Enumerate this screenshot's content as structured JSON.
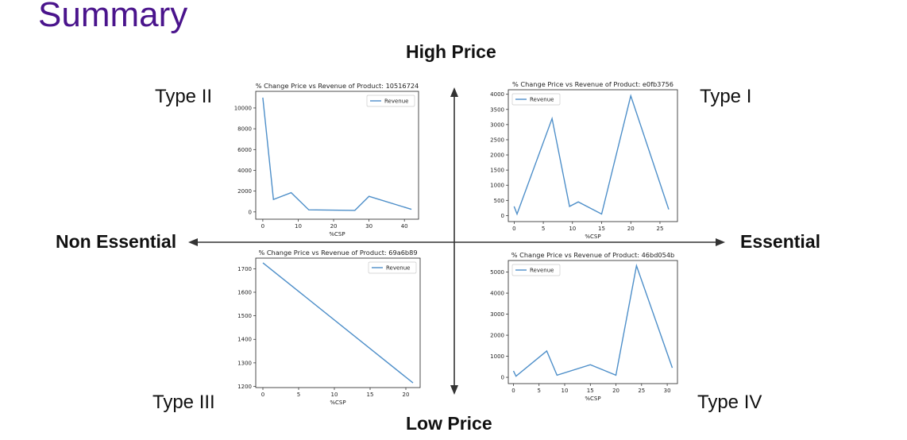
{
  "slide": {
    "title": "Summary",
    "axes": {
      "top": "High Price",
      "bottom": "Low Price",
      "left": "Non Essential",
      "right": "Essential"
    },
    "types": {
      "top_left": "Type II",
      "top_right": "Type I",
      "bottom_left": "Type III",
      "bottom_right": "Type IV"
    }
  },
  "chart_data": [
    {
      "id": "c-topleft",
      "type": "line",
      "title": "% Change Price vs Revenue of Product: 10516724",
      "xlabel": "%CSP",
      "ylabel": "",
      "x": [
        0,
        3,
        8,
        13,
        26,
        30,
        42
      ],
      "series": [
        {
          "name": "Revenue",
          "values": [
            11000,
            1200,
            1850,
            200,
            150,
            1500,
            250
          ]
        }
      ],
      "xlim": [
        -2,
        44
      ],
      "ylim": [
        -700,
        11600
      ],
      "xticks": [
        0,
        10,
        20,
        30,
        40
      ],
      "yticks": [
        0,
        2000,
        4000,
        6000,
        8000,
        10000
      ],
      "legend": "top-right",
      "color": "#4e8fc9"
    },
    {
      "id": "c-topright",
      "type": "line",
      "title": "% Change Price vs Revenue of Product: e0fb3756",
      "xlabel": "%CSP",
      "ylabel": "",
      "x": [
        0,
        0.5,
        6.5,
        9.5,
        11,
        15,
        20,
        26.5
      ],
      "series": [
        {
          "name": "Revenue",
          "values": [
            300,
            50,
            3200,
            300,
            450,
            50,
            3950,
            200
          ]
        }
      ],
      "xlim": [
        -1,
        28
      ],
      "ylim": [
        -200,
        4150
      ],
      "xticks": [
        0,
        5,
        10,
        15,
        20,
        25
      ],
      "yticks": [
        0,
        500,
        1000,
        1500,
        2000,
        2500,
        3000,
        3500,
        4000
      ],
      "legend": "top-left",
      "color": "#4e8fc9"
    },
    {
      "id": "c-bottomleft",
      "type": "line",
      "title": "% Change Price vs Revenue of Product: 69a6b89",
      "xlabel": "%CSP",
      "ylabel": "",
      "x": [
        0,
        21
      ],
      "series": [
        {
          "name": "Revenue",
          "values": [
            1725,
            1215
          ]
        }
      ],
      "xlim": [
        -1,
        22
      ],
      "ylim": [
        1195,
        1745
      ],
      "xticks": [
        0,
        5,
        10,
        15,
        20
      ],
      "yticks": [
        1200,
        1300,
        1400,
        1500,
        1600,
        1700
      ],
      "legend": "top-right",
      "color": "#4e8fc9"
    },
    {
      "id": "c-bottomright",
      "type": "line",
      "title": "% Change Price vs Revenue of Product: 46bd054b",
      "xlabel": "%CSP",
      "ylabel": "",
      "x": [
        0,
        0.5,
        6.5,
        8.5,
        15,
        20,
        24,
        31
      ],
      "series": [
        {
          "name": "Revenue",
          "values": [
            300,
            50,
            1250,
            100,
            600,
            100,
            5300,
            450
          ]
        }
      ],
      "xlim": [
        -1,
        32
      ],
      "ylim": [
        -300,
        5550
      ],
      "xticks": [
        0,
        5,
        10,
        15,
        20,
        25,
        30
      ],
      "yticks": [
        0,
        1000,
        2000,
        3000,
        4000,
        5000
      ],
      "legend": "top-left",
      "color": "#4e8fc9"
    }
  ]
}
